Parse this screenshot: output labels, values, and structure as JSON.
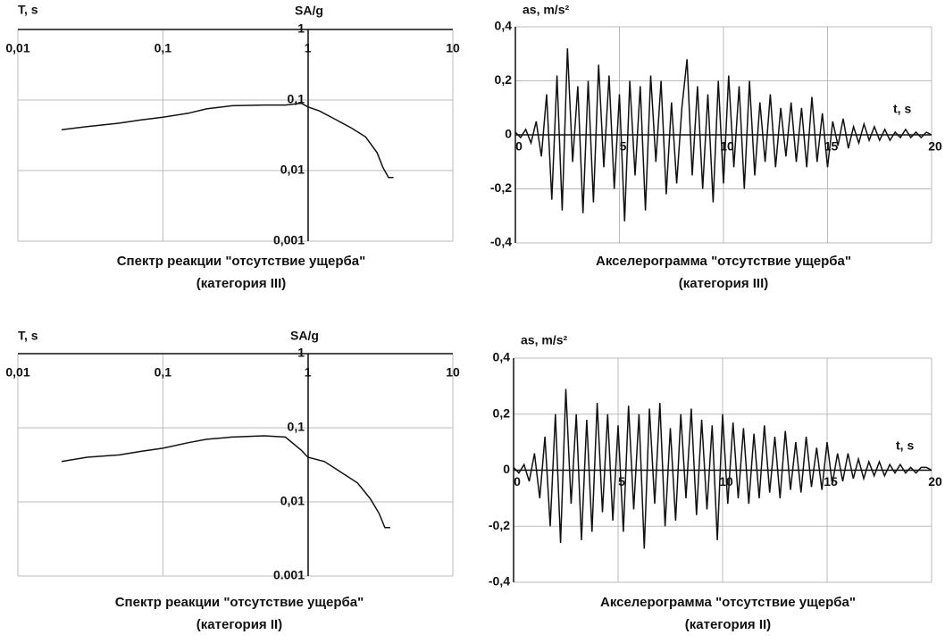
{
  "chart_data": [
    {
      "type": "line",
      "xscale": "log",
      "yscale": "log",
      "grid": true,
      "color": "#111",
      "title": "Спектр реакции \"отсутствие ущерба\"",
      "subtitle": "(категория III)",
      "xlabel": "T, s",
      "ylabel": "SA/g",
      "x": [
        0.02,
        0.03,
        0.05,
        0.07,
        0.1,
        0.15,
        0.2,
        0.3,
        0.5,
        0.7,
        0.9,
        1.0,
        1.2,
        1.5,
        2,
        2.5,
        3,
        3.3,
        3.6,
        3.9
      ],
      "values": [
        0.038,
        0.042,
        0.047,
        0.052,
        0.057,
        0.065,
        0.075,
        0.083,
        0.085,
        0.085,
        0.09,
        0.08,
        0.07,
        0.055,
        0.04,
        0.03,
        0.018,
        0.011,
        0.008,
        0.008
      ],
      "xlim": [
        0.01,
        10
      ],
      "xticks": [
        {
          "value": 0.01,
          "label": "0,01"
        },
        {
          "value": 0.1,
          "label": "0,1"
        },
        1,
        10
      ],
      "ylim": [
        0.001,
        1
      ],
      "yticks": [
        1,
        {
          "value": 0.1,
          "label": "0,1"
        },
        {
          "value": 0.01,
          "label": "0,01"
        },
        {
          "value": 0.001,
          "label": "0,001"
        }
      ]
    },
    {
      "type": "line",
      "grid": true,
      "color": "#111",
      "title": "Акселерограмма \"отсутствие ущерба\"",
      "subtitle": "(категория III)",
      "xlabel": "t, s",
      "ylabel": "as, m/s²",
      "x": [
        0,
        0.25,
        0.5,
        0.75,
        1,
        1.25,
        1.5,
        1.75,
        2,
        2.25,
        2.5,
        2.75,
        3,
        3.25,
        3.5,
        3.75,
        4,
        4.25,
        4.5,
        4.75,
        5,
        5.25,
        5.5,
        5.75,
        6,
        6.25,
        6.5,
        6.75,
        7,
        7.25,
        7.5,
        7.75,
        8,
        8.25,
        8.5,
        8.75,
        9,
        9.25,
        9.5,
        9.75,
        10,
        10.25,
        10.5,
        10.75,
        11,
        11.25,
        11.5,
        11.75,
        12,
        12.25,
        12.5,
        12.75,
        13,
        13.25,
        13.5,
        13.75,
        14,
        14.25,
        14.5,
        14.75,
        15,
        15.25,
        15.5,
        15.75,
        16,
        16.25,
        16.5,
        16.75,
        17,
        17.25,
        17.5,
        17.75,
        18,
        18.25,
        18.5,
        18.75,
        19,
        19.25,
        19.5,
        19.75,
        20
      ],
      "values": [
        0.01,
        -0.01,
        0.02,
        -0.03,
        0.05,
        -0.08,
        0.15,
        -0.24,
        0.22,
        -0.28,
        0.32,
        -0.1,
        0.18,
        -0.29,
        0.2,
        -0.25,
        0.26,
        -0.12,
        0.22,
        -0.2,
        0.15,
        -0.32,
        0.2,
        -0.15,
        0.18,
        -0.28,
        0.22,
        -0.1,
        0.2,
        -0.22,
        0.12,
        -0.18,
        0.1,
        0.28,
        -0.15,
        0.18,
        -0.2,
        0.15,
        -0.25,
        0.2,
        -0.18,
        0.22,
        -0.12,
        0.18,
        -0.2,
        0.2,
        -0.15,
        0.12,
        -0.1,
        0.15,
        -0.12,
        0.1,
        -0.08,
        0.12,
        -0.1,
        0.1,
        -0.12,
        0.14,
        -0.1,
        0.08,
        -0.12,
        0.05,
        -0.04,
        0.06,
        -0.05,
        0.03,
        -0.03,
        0.04,
        -0.02,
        0.03,
        -0.02,
        0.02,
        -0.02,
        0.01,
        -0.01,
        0.02,
        -0.01,
        0.01,
        -0.01,
        0.01,
        0
      ],
      "xlim": [
        0,
        20
      ],
      "xticks": [
        0,
        5,
        10,
        15,
        20
      ],
      "ylim": [
        -0.4,
        0.4
      ],
      "yticks": [
        {
          "value": 0.4,
          "label": "0,4"
        },
        {
          "value": 0.2,
          "label": "0,2"
        },
        0,
        {
          "value": -0.2,
          "label": "-0,2"
        },
        {
          "value": -0.4,
          "label": "-0,4"
        }
      ]
    },
    {
      "type": "line",
      "xscale": "log",
      "yscale": "log",
      "grid": true,
      "color": "#111",
      "title": "Спектр реакции \"отсутствие ущерба\"",
      "subtitle": "(категория II)",
      "xlabel": "T, s",
      "ylabel": "SA/g",
      "x": [
        0.02,
        0.03,
        0.05,
        0.07,
        0.1,
        0.15,
        0.2,
        0.3,
        0.5,
        0.7,
        0.9,
        1.0,
        1.3,
        1.7,
        2.2,
        2.7,
        3.1,
        3.4,
        3.7
      ],
      "values": [
        0.035,
        0.04,
        0.043,
        0.048,
        0.053,
        0.063,
        0.07,
        0.075,
        0.078,
        0.075,
        0.05,
        0.04,
        0.035,
        0.025,
        0.018,
        0.011,
        0.007,
        0.0045,
        0.0045
      ],
      "xlim": [
        0.01,
        10
      ],
      "xticks": [
        {
          "value": 0.01,
          "label": "0,01"
        },
        {
          "value": 0.1,
          "label": "0,1"
        },
        1,
        10
      ],
      "ylim": [
        0.001,
        1
      ],
      "yticks": [
        1,
        {
          "value": 0.1,
          "label": "0,1"
        },
        {
          "value": 0.01,
          "label": "0,01"
        },
        {
          "value": 0.001,
          "label": "0.001"
        }
      ]
    },
    {
      "type": "line",
      "grid": true,
      "color": "#111",
      "title": "Акселерограмма \"отсутствие ущерба\"",
      "subtitle": "(категория II)",
      "xlabel": "t, s",
      "ylabel": "as, m/s²",
      "x": [
        0,
        0.25,
        0.5,
        0.75,
        1,
        1.25,
        1.5,
        1.75,
        2,
        2.25,
        2.5,
        2.75,
        3,
        3.25,
        3.5,
        3.75,
        4,
        4.25,
        4.5,
        4.75,
        5,
        5.25,
        5.5,
        5.75,
        6,
        6.25,
        6.5,
        6.75,
        7,
        7.25,
        7.5,
        7.75,
        8,
        8.25,
        8.5,
        8.75,
        9,
        9.25,
        9.5,
        9.75,
        10,
        10.25,
        10.5,
        10.75,
        11,
        11.25,
        11.5,
        11.75,
        12,
        12.25,
        12.5,
        12.75,
        13,
        13.25,
        13.5,
        13.75,
        14,
        14.25,
        14.5,
        14.75,
        15,
        15.25,
        15.5,
        15.75,
        16,
        16.25,
        16.5,
        16.75,
        17,
        17.25,
        17.5,
        17.75,
        18,
        18.25,
        18.5,
        18.75,
        19,
        19.25,
        19.5,
        19.75,
        20
      ],
      "values": [
        0.01,
        -0.01,
        0.02,
        -0.04,
        0.06,
        -0.1,
        0.12,
        -0.2,
        0.2,
        -0.26,
        0.29,
        -0.12,
        0.2,
        -0.25,
        0.18,
        -0.22,
        0.24,
        -0.15,
        0.2,
        -0.18,
        0.16,
        -0.22,
        0.23,
        -0.14,
        0.2,
        -0.28,
        0.22,
        -0.12,
        0.24,
        -0.2,
        0.15,
        -0.18,
        0.2,
        -0.1,
        0.22,
        -0.16,
        0.18,
        -0.14,
        0.16,
        -0.25,
        0.2,
        -0.12,
        0.17,
        -0.1,
        0.15,
        -0.12,
        0.13,
        -0.1,
        0.16,
        -0.08,
        0.12,
        -0.1,
        0.14,
        -0.07,
        0.1,
        -0.08,
        0.12,
        -0.06,
        0.08,
        -0.07,
        0.1,
        -0.05,
        0.06,
        -0.04,
        0.06,
        -0.03,
        0.04,
        -0.03,
        0.03,
        -0.02,
        0.03,
        -0.02,
        0.02,
        -0.01,
        0.02,
        -0.01,
        0.01,
        -0.01,
        0.01,
        0.01,
        0
      ],
      "xlim": [
        0,
        20
      ],
      "xticks": [
        0,
        5,
        10,
        15,
        20
      ],
      "ylim": [
        -0.4,
        0.4
      ],
      "yticks": [
        {
          "value": 0.4,
          "label": "0,4"
        },
        {
          "value": 0.2,
          "label": "0,2"
        },
        0,
        {
          "value": -0.2,
          "label": "-0,2"
        },
        {
          "value": -0.4,
          "label": "-0,4"
        }
      ]
    }
  ]
}
